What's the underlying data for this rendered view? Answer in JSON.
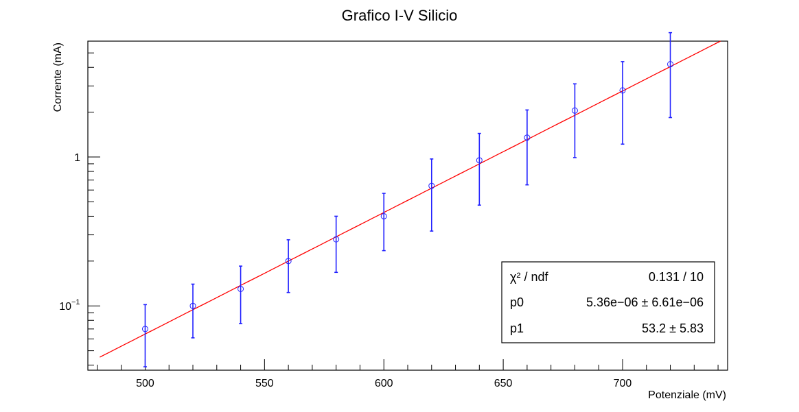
{
  "chart_data": {
    "type": "scatter",
    "title": "Grafico I-V Silicio",
    "xlabel": "Potenziale (mV)",
    "ylabel": "Corrente (mA)",
    "xlim": [
      476,
      744
    ],
    "ylim": [
      0.037,
      6.0
    ],
    "yscale": "log",
    "grid": false,
    "x_ticks": [
      500,
      550,
      600,
      650,
      700
    ],
    "y_tick_labels": [
      {
        "value": 1,
        "label": "1"
      },
      {
        "value": 0.1,
        "label": "10",
        "exponent": "−1"
      }
    ],
    "series": [
      {
        "marker": "open-circle",
        "color": "#2020ff",
        "x": [
          500,
          520,
          540,
          560,
          580,
          600,
          620,
          640,
          660,
          680,
          700,
          720
        ],
        "y": [
          0.07,
          0.1,
          0.13,
          0.2,
          0.28,
          0.4,
          0.64,
          0.95,
          1.35,
          2.05,
          2.8,
          4.2
        ],
        "y_err_low": [
          0.031,
          0.039,
          0.054,
          0.077,
          0.112,
          0.165,
          0.322,
          0.475,
          0.7,
          1.06,
          1.58,
          2.36
        ],
        "y_err_high": [
          0.032,
          0.04,
          0.055,
          0.078,
          0.12,
          0.17,
          0.33,
          0.49,
          0.72,
          1.05,
          1.57,
          2.64
        ]
      }
    ],
    "fit": {
      "color": "#ff0000",
      "x_range": [
        481,
        741
      ],
      "model_coeffs": {
        "p0": 5.36e-06,
        "p1": 53.2
      }
    },
    "stats_box": {
      "placement": "bottom-right",
      "rows": [
        {
          "label": "χ² / ndf",
          "value": "0.131 / 10"
        },
        {
          "label": "p0",
          "value": "5.36e−06 ± 6.61e−06"
        },
        {
          "label": "p1",
          "value": "53.2 ± 5.83"
        }
      ]
    }
  }
}
